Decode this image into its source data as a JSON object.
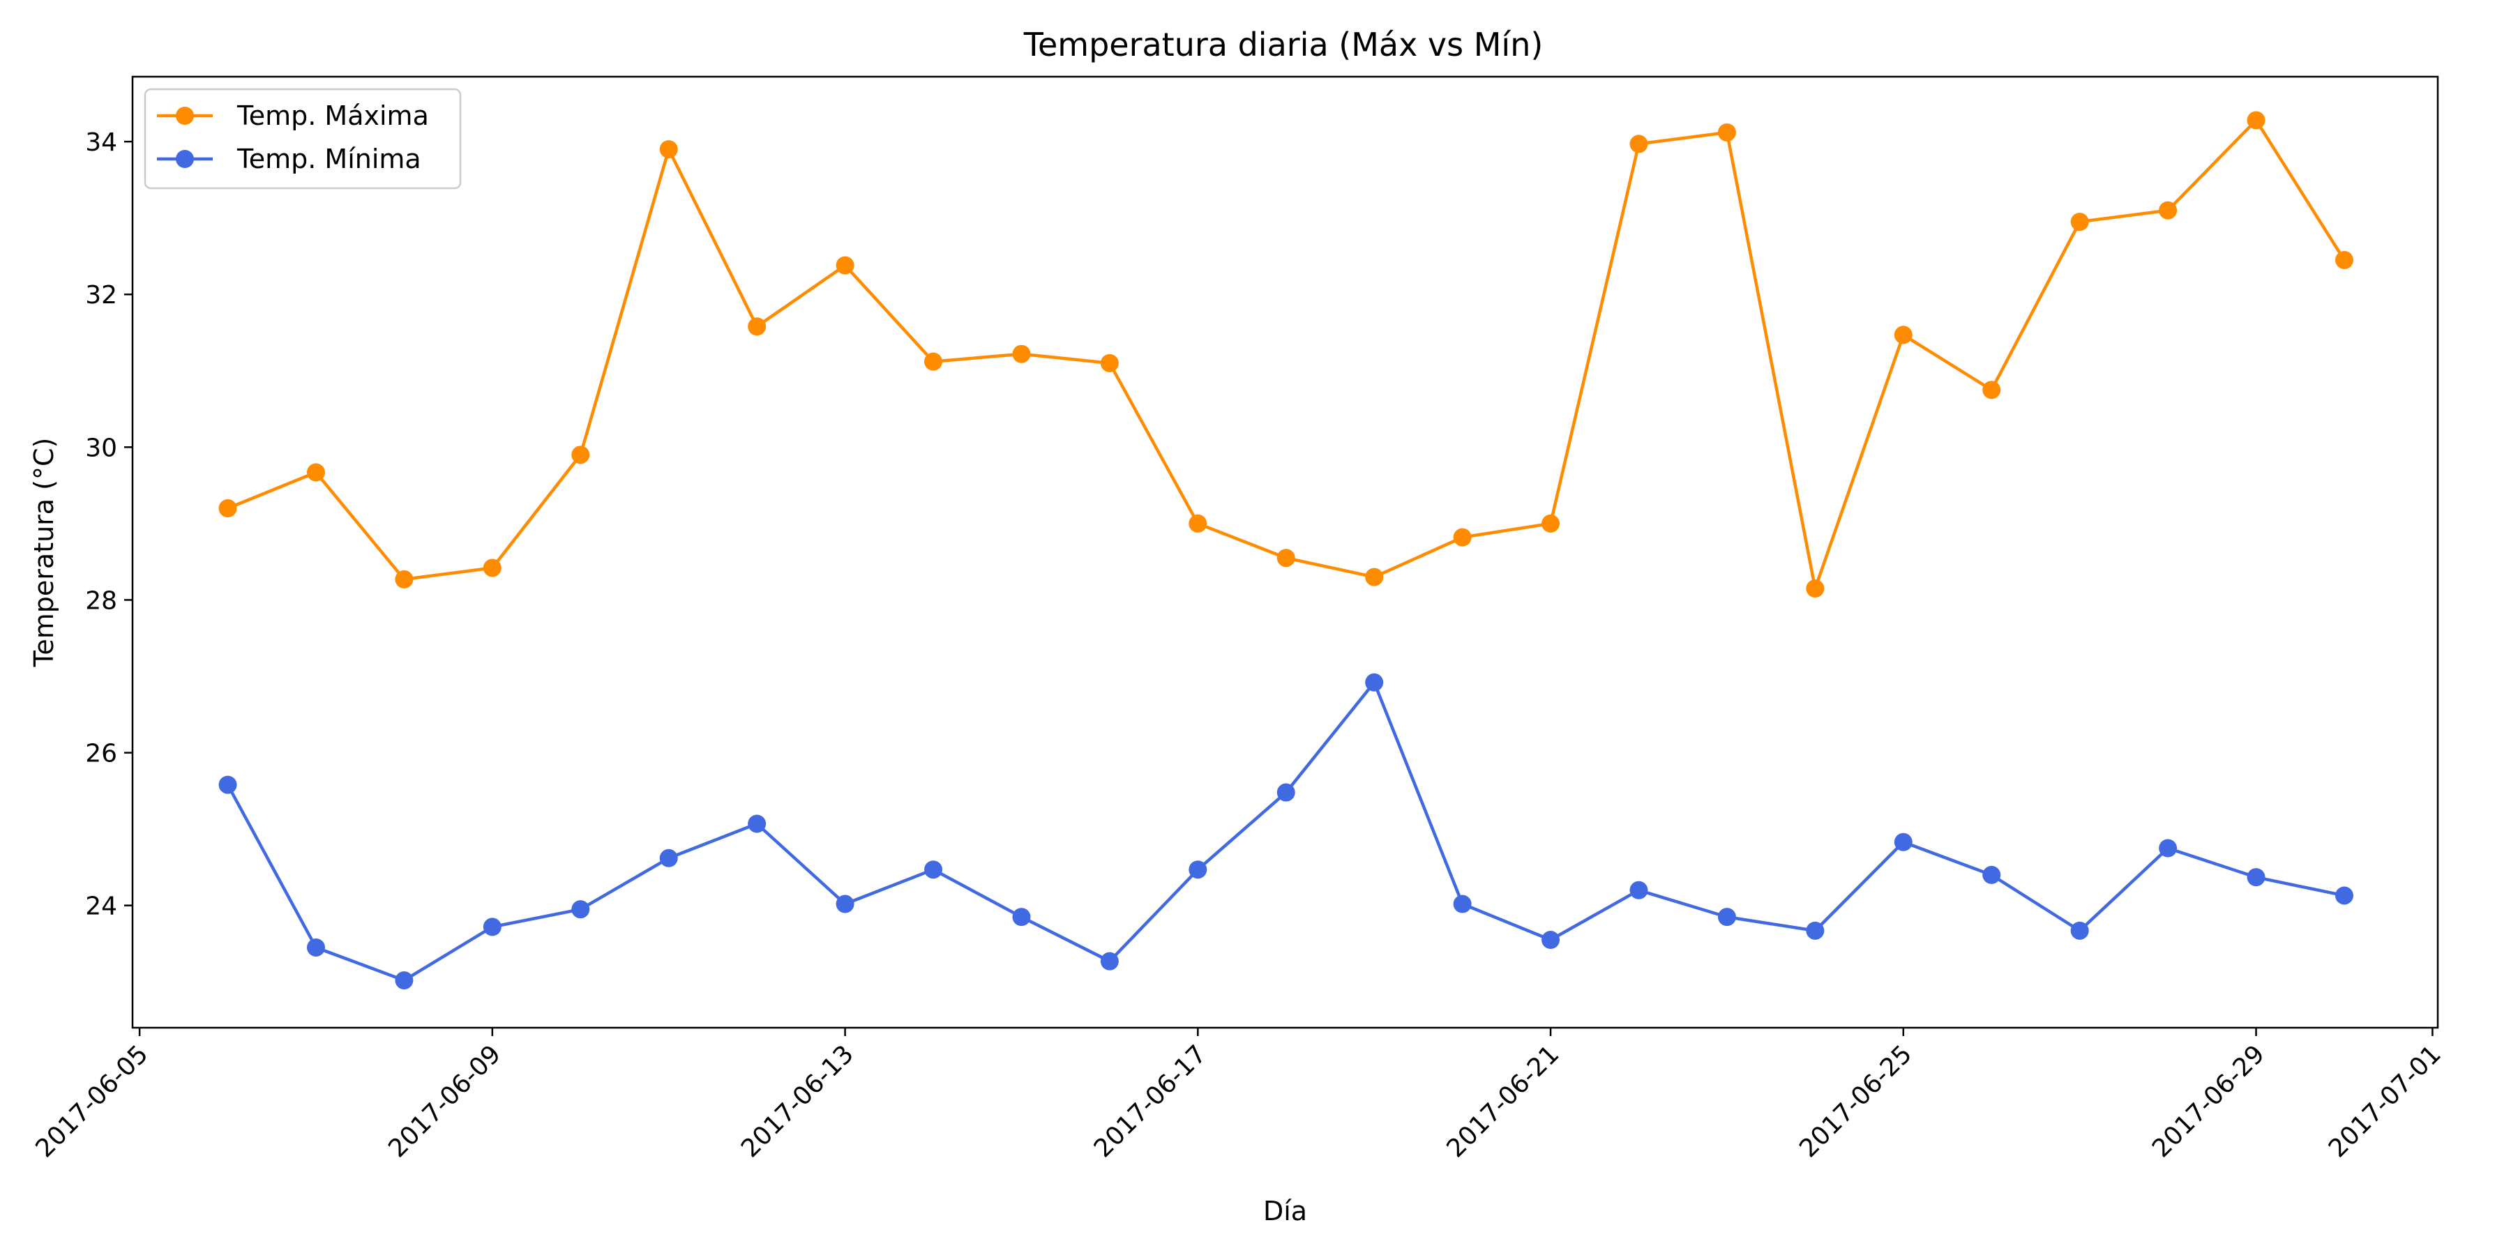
{
  "chart_data": {
    "type": "line",
    "title": "Temperatura diaria (Máx vs Mín)",
    "xlabel": "Día",
    "ylabel": "Temperatura (°C)",
    "x": [
      "2017-06-06",
      "2017-06-07",
      "2017-06-08",
      "2017-06-09",
      "2017-06-10",
      "2017-06-11",
      "2017-06-12",
      "2017-06-13",
      "2017-06-14",
      "2017-06-15",
      "2017-06-16",
      "2017-06-17",
      "2017-06-18",
      "2017-06-19",
      "2017-06-20",
      "2017-06-21",
      "2017-06-22",
      "2017-06-23",
      "2017-06-24",
      "2017-06-25",
      "2017-06-26",
      "2017-06-27",
      "2017-06-28",
      "2017-06-29",
      "2017-06-30"
    ],
    "xlim": [
      "2017-06-05",
      "2017-07-01"
    ],
    "x_ticks": [
      "2017-06-05",
      "2017-06-09",
      "2017-06-13",
      "2017-06-17",
      "2017-06-21",
      "2017-06-25",
      "2017-06-29",
      "2017-07-01"
    ],
    "ylim": [
      22.4,
      34.85
    ],
    "y_ticks": [
      24,
      26,
      28,
      30,
      32,
      34
    ],
    "grid": false,
    "legend_position": "upper-left",
    "series": [
      {
        "name": "Temp. Máxima",
        "color": "#ff8c00",
        "marker": "circle",
        "values": [
          29.2,
          29.67,
          28.27,
          28.42,
          29.9,
          33.9,
          31.58,
          32.38,
          31.12,
          31.22,
          31.1,
          29.0,
          28.55,
          28.3,
          28.82,
          29.0,
          33.97,
          34.12,
          28.15,
          31.47,
          30.75,
          32.95,
          33.1,
          34.28,
          32.45
        ]
      },
      {
        "name": "Temp. Mínima",
        "color": "#4169e1",
        "marker": "circle",
        "values": [
          25.58,
          23.45,
          23.02,
          23.72,
          23.95,
          24.62,
          25.07,
          24.02,
          24.47,
          23.85,
          23.27,
          24.47,
          25.48,
          26.92,
          24.02,
          23.55,
          24.2,
          23.85,
          23.67,
          24.83,
          24.4,
          23.67,
          24.75,
          24.37,
          24.13
        ]
      }
    ]
  }
}
